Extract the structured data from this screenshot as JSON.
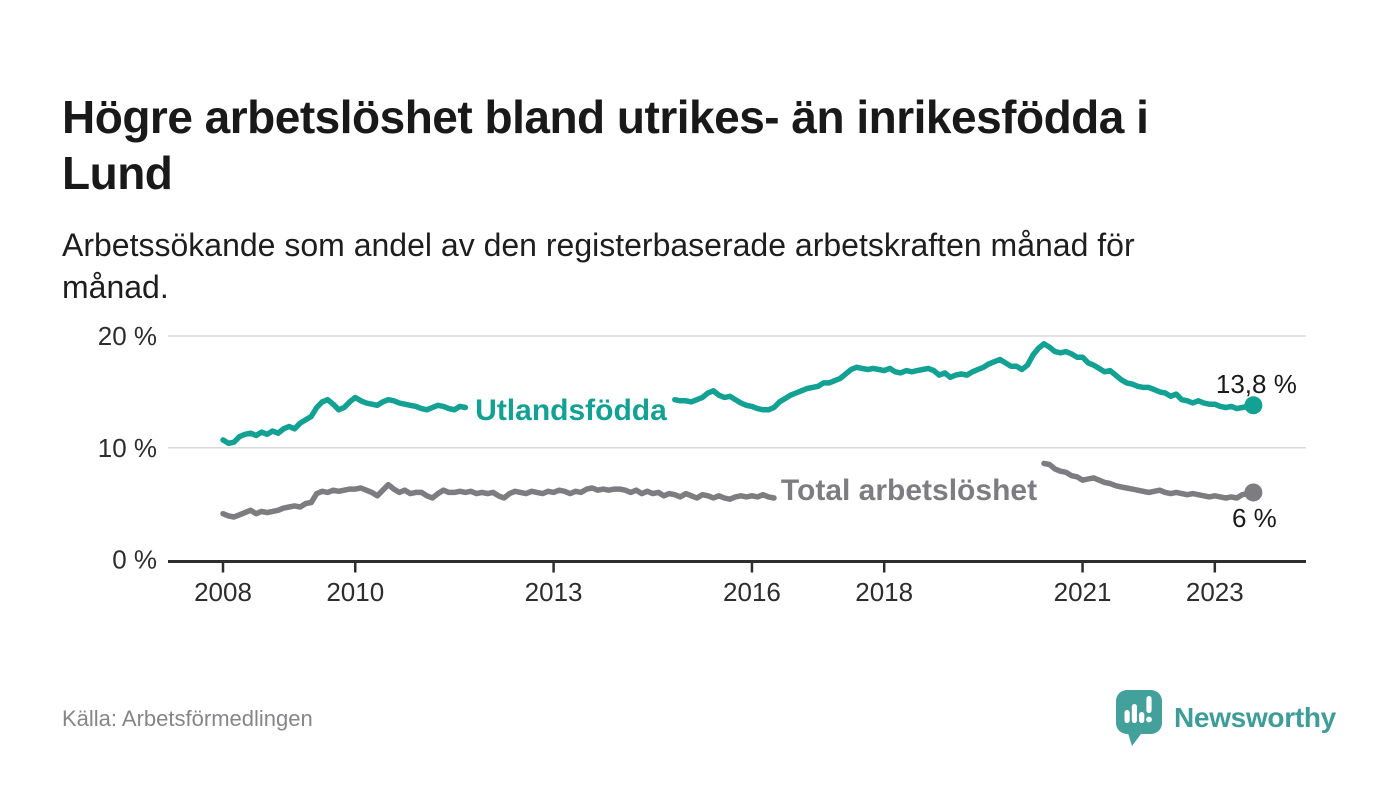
{
  "header": {
    "title": "Högre arbetslöshet bland utrikes- än inrikesfödda i Lund",
    "subtitle": "Arbetssökande som andel av den registerbaserade arbetskraften månad för månad."
  },
  "footer": {
    "source": "Källa: Arbetsförmedlingen",
    "brand_name": "Newsworthy",
    "brand_icon": "newsworthy-speech-bubble-bar-chart-icon"
  },
  "colors": {
    "foreign_born_line": "#13a193",
    "total_line": "#7c7c81",
    "axis": "#2e2e2e",
    "axis_text": "#2d2d2d",
    "grid": "#dadada",
    "title_text": "#191919",
    "source_text": "#86868a",
    "brand": "#3f9d97",
    "end_label_text": "#1a1a1a",
    "background": "#ffffff"
  },
  "chart_data": {
    "type": "line",
    "title": "Högre arbetslöshet bland utrikes- än inrikesfödda i Lund",
    "subtitle": "Arbetssökande som andel av den registerbaserade arbetskraften månad för månad.",
    "frequency": "monthly",
    "x_start": "2008-01",
    "x_end": "2023-08",
    "ylim": [
      0,
      20
    ],
    "grid": "horizontal",
    "legend_position": "on-line-labels",
    "y_ticks": [
      {
        "value": 0,
        "label": "0 %"
      },
      {
        "value": 10,
        "label": "10 %"
      },
      {
        "value": 20,
        "label": "20 %"
      }
    ],
    "x_ticks": [
      {
        "month_index": 0,
        "label": "2008"
      },
      {
        "month_index": 24,
        "label": "2010"
      },
      {
        "month_index": 60,
        "label": "2013"
      },
      {
        "month_index": 96,
        "label": "2016"
      },
      {
        "month_index": 120,
        "label": "2018"
      },
      {
        "month_index": 156,
        "label": "2021"
      },
      {
        "month_index": 180,
        "label": "2023"
      }
    ],
    "series": [
      {
        "name": "Utlandsfödda",
        "color": "#13a193",
        "end_label": "13,8 %",
        "end_value": 13.8,
        "values": [
          10.7,
          10.4,
          10.5,
          11.0,
          11.2,
          11.3,
          11.1,
          11.4,
          11.2,
          11.5,
          11.3,
          11.7,
          11.9,
          11.7,
          12.2,
          12.5,
          12.8,
          13.6,
          14.1,
          14.3,
          13.9,
          13.4,
          13.6,
          14.1,
          14.5,
          14.2,
          14.0,
          13.9,
          13.8,
          14.1,
          14.3,
          14.2,
          14.0,
          13.9,
          13.8,
          13.7,
          13.5,
          13.4,
          13.6,
          13.8,
          13.7,
          13.5,
          13.4,
          13.7,
          13.6,
          13.5,
          13.6,
          13.7,
          13.8,
          13.6,
          13.5,
          13.7,
          13.9,
          13.8,
          13.6,
          13.7,
          13.9,
          14.0,
          13.8,
          13.9,
          14.0,
          13.8,
          13.9,
          14.1,
          14.0,
          13.8,
          13.9,
          14.1,
          14.2,
          14.0,
          14.1,
          14.2,
          14.3,
          14.1,
          14.0,
          14.2,
          14.3,
          14.1,
          14.0,
          14.2,
          14.3,
          14.4,
          14.3,
          14.2,
          14.2,
          14.1,
          14.3,
          14.5,
          14.9,
          15.1,
          14.7,
          14.5,
          14.6,
          14.3,
          14.0,
          13.8,
          13.7,
          13.5,
          13.4,
          13.4,
          13.6,
          14.1,
          14.4,
          14.7,
          14.9,
          15.1,
          15.3,
          15.4,
          15.5,
          15.8,
          15.8,
          16.0,
          16.2,
          16.6,
          17.0,
          17.2,
          17.1,
          17.0,
          17.1,
          17.0,
          16.9,
          17.1,
          16.8,
          16.7,
          16.9,
          16.8,
          16.9,
          17.0,
          17.1,
          16.9,
          16.5,
          16.7,
          16.3,
          16.5,
          16.6,
          16.5,
          16.8,
          17.0,
          17.2,
          17.5,
          17.7,
          17.9,
          17.6,
          17.3,
          17.3,
          17.0,
          17.4,
          18.3,
          18.9,
          19.3,
          19.0,
          18.6,
          18.5,
          18.6,
          18.4,
          18.1,
          18.1,
          17.6,
          17.4,
          17.1,
          16.8,
          16.9,
          16.5,
          16.1,
          15.8,
          15.7,
          15.5,
          15.4,
          15.4,
          15.2,
          15.0,
          14.9,
          14.6,
          14.8,
          14.3,
          14.2,
          14.0,
          14.2,
          14.0,
          13.9,
          13.9,
          13.7,
          13.6,
          13.7,
          13.5,
          13.6,
          13.7,
          13.8
        ]
      },
      {
        "name": "Total arbetslöshet",
        "color": "#7c7c81",
        "end_label": "6 %",
        "end_value": 6.0,
        "values": [
          4.1,
          3.9,
          3.8,
          4.0,
          4.2,
          4.4,
          4.1,
          4.3,
          4.2,
          4.3,
          4.4,
          4.6,
          4.7,
          4.8,
          4.7,
          5.0,
          5.1,
          5.9,
          6.1,
          6.0,
          6.2,
          6.1,
          6.2,
          6.3,
          6.3,
          6.4,
          6.2,
          6.0,
          5.7,
          6.2,
          6.7,
          6.3,
          6.0,
          6.2,
          5.9,
          6.0,
          6.0,
          5.7,
          5.5,
          5.9,
          6.2,
          6.0,
          6.0,
          6.1,
          6.0,
          6.1,
          5.9,
          6.0,
          5.9,
          6.0,
          5.7,
          5.5,
          5.9,
          6.1,
          6.0,
          5.9,
          6.1,
          6.0,
          5.9,
          6.1,
          6.0,
          6.2,
          6.1,
          5.9,
          6.1,
          6.0,
          6.3,
          6.4,
          6.2,
          6.3,
          6.2,
          6.3,
          6.3,
          6.2,
          6.0,
          6.2,
          5.9,
          6.1,
          5.9,
          6.0,
          5.7,
          5.9,
          5.8,
          5.6,
          5.9,
          5.7,
          5.5,
          5.8,
          5.7,
          5.5,
          5.7,
          5.5,
          5.4,
          5.6,
          5.7,
          5.6,
          5.7,
          5.6,
          5.8,
          5.6,
          5.5,
          5.7,
          5.8,
          5.6,
          5.5,
          5.6,
          5.5,
          5.6,
          5.5,
          5.4,
          5.5,
          5.6,
          5.5,
          5.4,
          5.5,
          5.6,
          5.5,
          5.4,
          5.5,
          5.4,
          5.4,
          5.3,
          5.4,
          5.5,
          5.4,
          5.3,
          5.5,
          5.6,
          5.4,
          5.3,
          5.4,
          5.5,
          5.5,
          5.6,
          5.5,
          5.7,
          5.8,
          5.9,
          6.0,
          5.9,
          5.8,
          5.9,
          6.0,
          6.1,
          6.3,
          6.5,
          6.8,
          7.6,
          8.2,
          8.6,
          8.5,
          8.1,
          7.9,
          7.8,
          7.5,
          7.4,
          7.1,
          7.2,
          7.3,
          7.1,
          6.9,
          6.8,
          6.6,
          6.5,
          6.4,
          6.3,
          6.2,
          6.1,
          6.0,
          6.1,
          6.2,
          6.0,
          5.9,
          6.0,
          5.9,
          5.8,
          5.9,
          5.8,
          5.7,
          5.6,
          5.7,
          5.6,
          5.5,
          5.6,
          5.5,
          5.8,
          5.9,
          6.0
        ]
      }
    ]
  }
}
